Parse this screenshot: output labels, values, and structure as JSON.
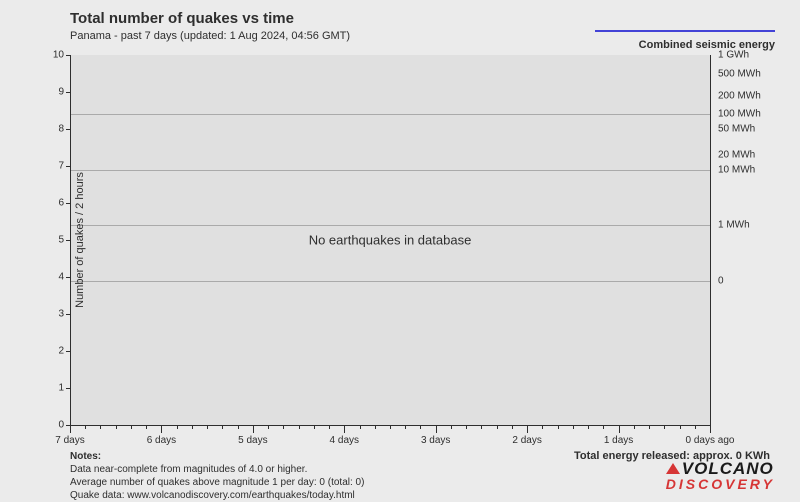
{
  "chart": {
    "type": "line",
    "title": "Total number of quakes vs time",
    "subtitle": "Panama - past 7 days (updated: 1 Aug 2024, 04:56 GMT)",
    "background_color": "#ebebeb",
    "plot_background_color": "#e0e0e0",
    "grid_color": "#aaaaaa",
    "text_color": "#2e2e2e",
    "title_fontsize": 15,
    "subtitle_fontsize": 11,
    "tick_fontsize": 10,
    "no_data_message": "No earthquakes in database",
    "legend": {
      "label": "Combined seismic energy",
      "line_color": "#4242d6",
      "line_width": 2
    },
    "y_left": {
      "label": "Number of quakes / 2 hours",
      "min": 0,
      "max": 10,
      "ticks": [
        0,
        1,
        2,
        3,
        4,
        5,
        6,
        7,
        8,
        9,
        10
      ]
    },
    "y_right": {
      "label": "Combined seismic energy",
      "scale": "log",
      "ticks": [
        {
          "label": "1 GWh",
          "pos": 0.0
        },
        {
          "label": "500 MWh",
          "pos": 0.05
        },
        {
          "label": "200 MWh",
          "pos": 0.11
        },
        {
          "label": "100 MWh",
          "pos": 0.16
        },
        {
          "label": "50 MWh",
          "pos": 0.2
        },
        {
          "label": "20 MWh",
          "pos": 0.27
        },
        {
          "label": "10 MWh",
          "pos": 0.31
        },
        {
          "label": "1 MWh",
          "pos": 0.46
        },
        {
          "label": "0",
          "pos": 0.61
        }
      ],
      "gridlines_at": [
        0.16,
        0.31,
        0.46,
        0.61
      ]
    },
    "x": {
      "min": 0,
      "max": 7,
      "major_ticks": [
        7,
        6,
        5,
        4,
        3,
        2,
        1,
        0
      ],
      "major_labels": [
        "7 days",
        "6 days",
        "5 days",
        "4 days",
        "3 days",
        "2 days",
        "1 days",
        "0 days ago"
      ],
      "minor_per_major": 5
    },
    "series": []
  },
  "notes": {
    "title": "Notes:",
    "line1": "Data near-complete from magnitudes of 4.0 or higher.",
    "line2": "Average number of quakes above magnitude 1 per day: 0 (total: 0)",
    "line3": "Quake data: www.volcanodiscovery.com/earthquakes/today.html"
  },
  "total_energy": "Total energy released: approx. 0 KWh",
  "logo": {
    "line1": "VOLCANO",
    "line2": "DISCOVERY",
    "color1": "#1a1a1a",
    "color2": "#d63535"
  }
}
